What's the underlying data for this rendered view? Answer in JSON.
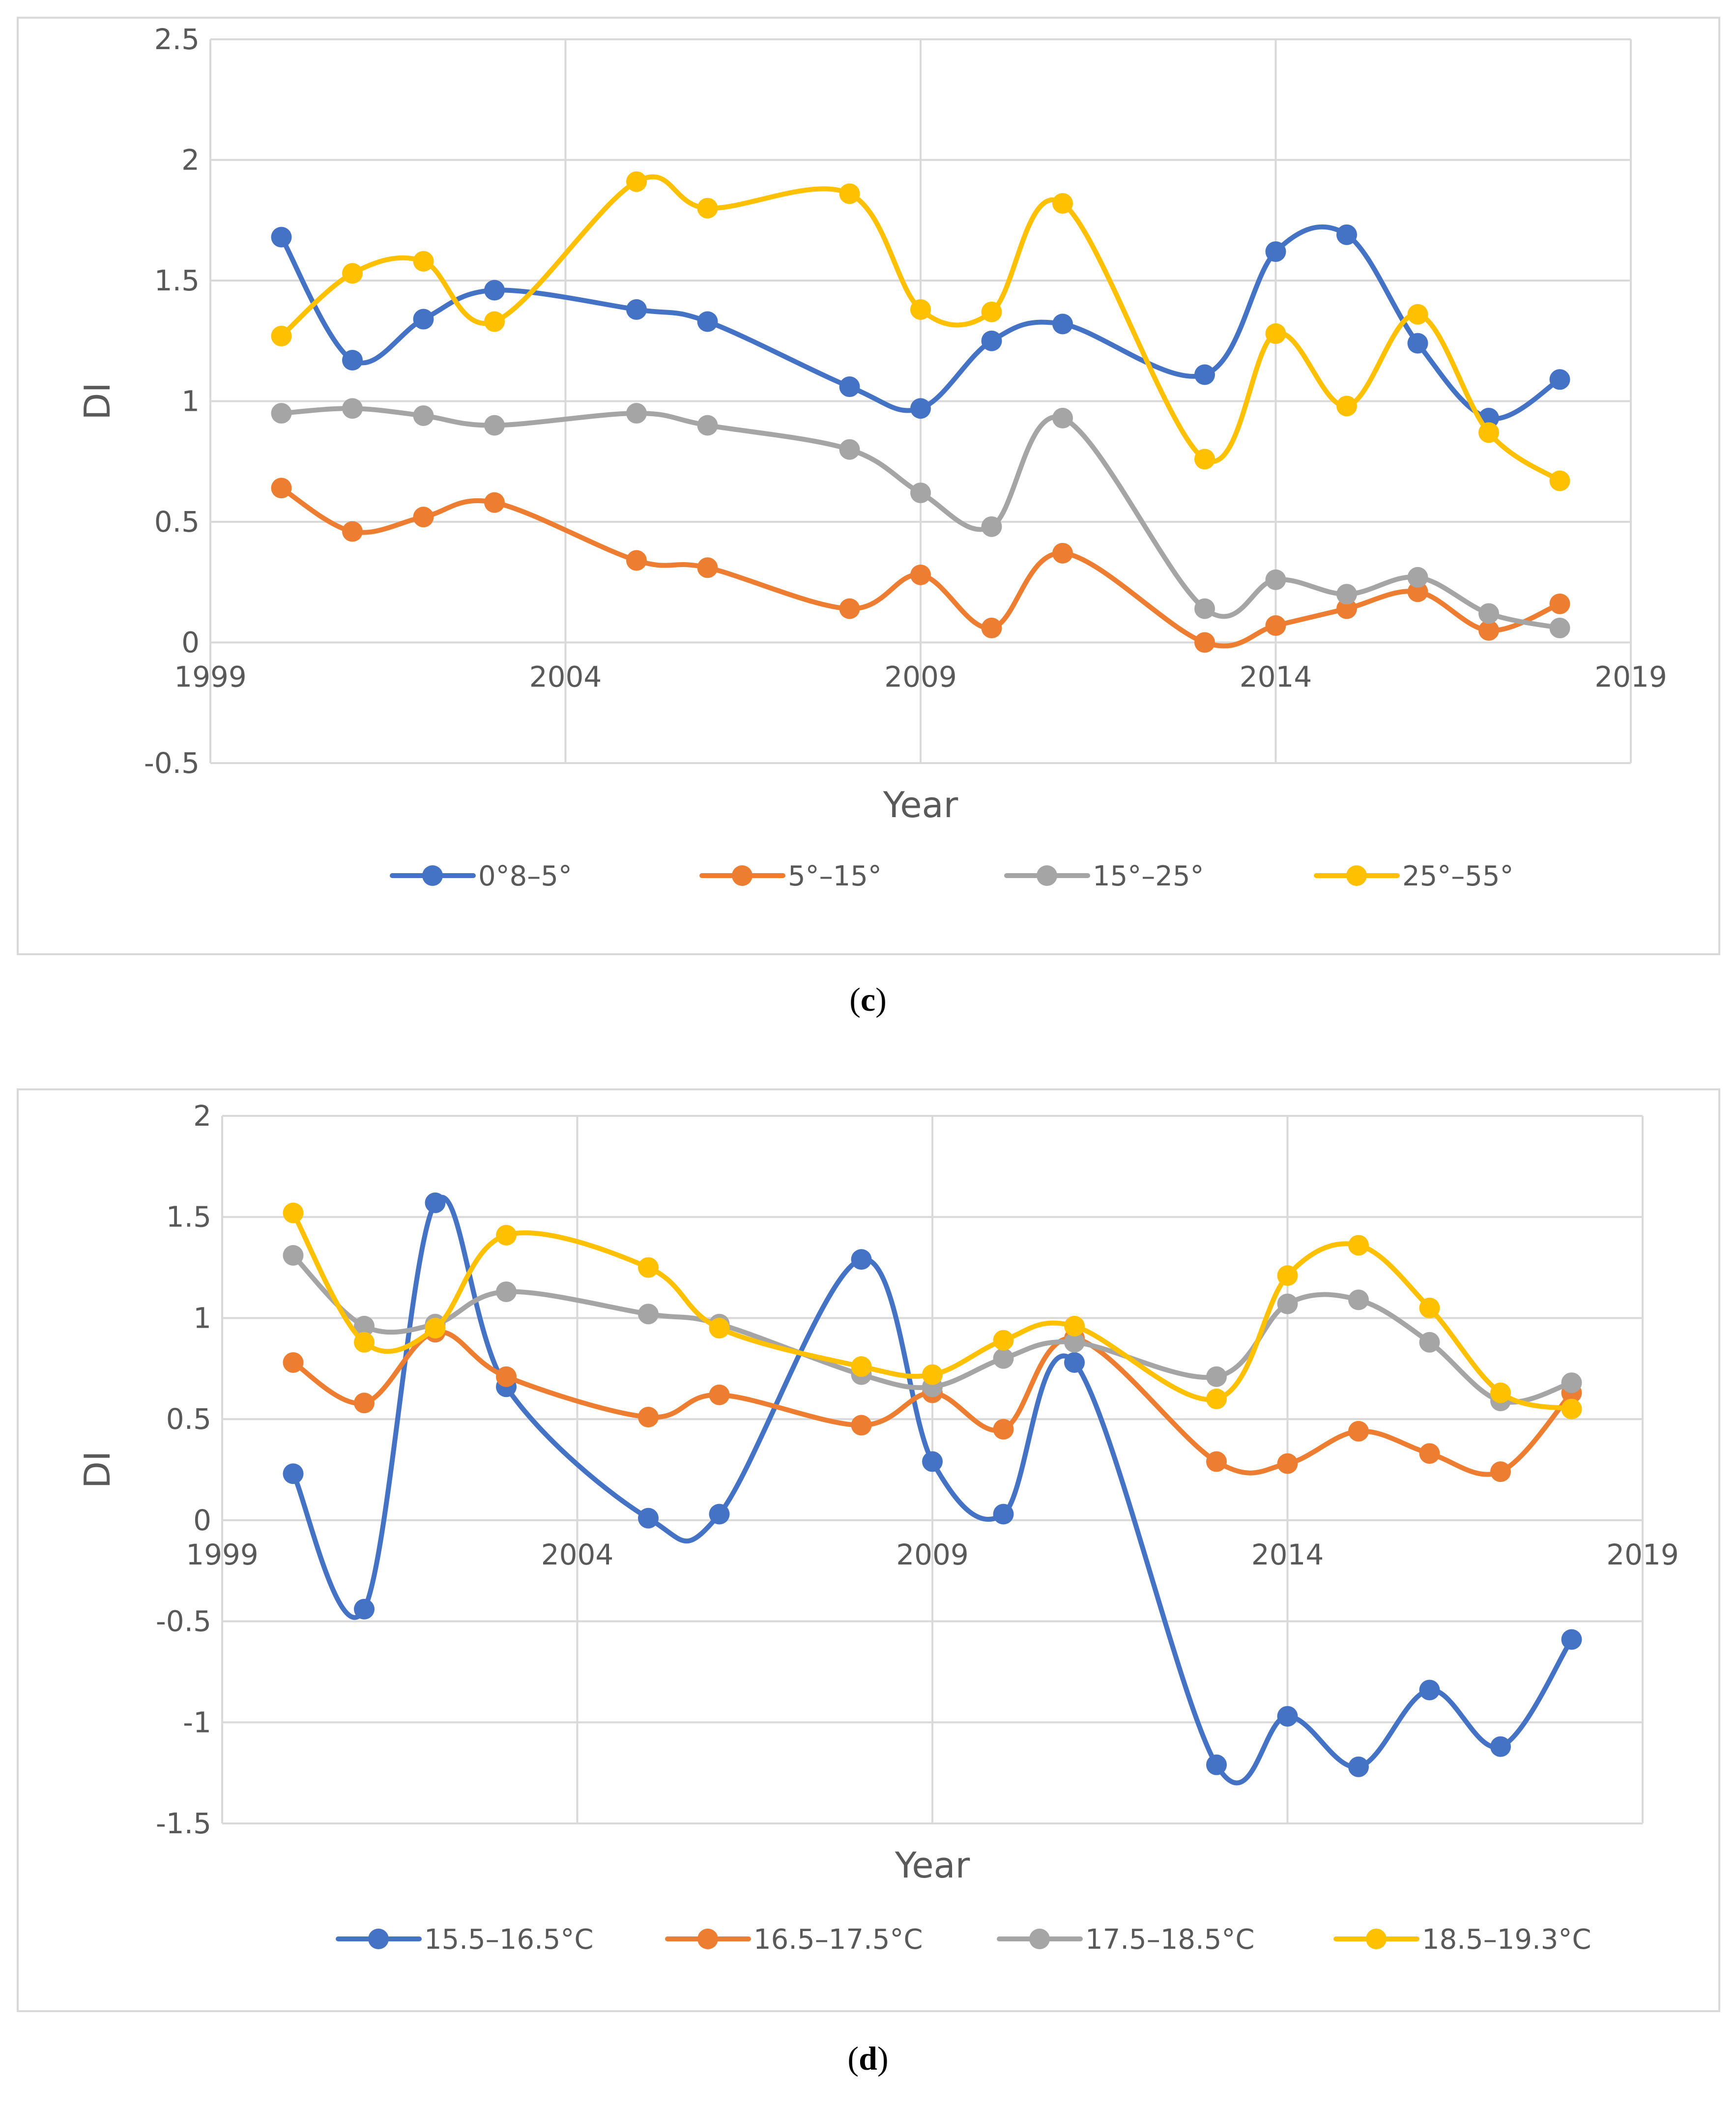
{
  "chart_data": [
    {
      "type": "line",
      "panel": "c",
      "caption": "c",
      "title": "",
      "xlabel": "Year",
      "ylabel": "DI",
      "xlim": [
        1999,
        2019
      ],
      "ylim": [
        -0.5,
        2.5
      ],
      "xticks": [
        "1999",
        "2004",
        "2009",
        "2014",
        "2019"
      ],
      "yticks": [
        "2.5",
        "2",
        "1.5",
        "1",
        "0.5",
        "0",
        "-0.5"
      ],
      "grid": true,
      "legend_position": "bottom",
      "x": [
        2000,
        2001,
        2002,
        2003,
        2005,
        2006,
        2008,
        2009,
        2010,
        2011,
        2013,
        2014,
        2015,
        2016,
        2017,
        2018
      ],
      "series": [
        {
          "name": "0°8–5°",
          "color": "#4472C4",
          "values": [
            1.68,
            1.17,
            1.34,
            1.46,
            1.38,
            1.33,
            1.06,
            0.97,
            1.25,
            1.32,
            1.11,
            1.62,
            1.69,
            1.24,
            0.93,
            1.09
          ]
        },
        {
          "name": "5°–15°",
          "color": "#ED7D31",
          "values": [
            0.64,
            0.46,
            0.52,
            0.58,
            0.34,
            0.31,
            0.14,
            0.28,
            0.06,
            0.37,
            0.0,
            0.07,
            0.14,
            0.21,
            0.05,
            0.16
          ]
        },
        {
          "name": "15°–25°",
          "color": "#A5A5A5",
          "values": [
            0.95,
            0.97,
            0.94,
            0.9,
            0.95,
            0.9,
            0.8,
            0.62,
            0.48,
            0.93,
            0.14,
            0.26,
            0.2,
            0.27,
            0.12,
            0.06
          ]
        },
        {
          "name": "25°–55°",
          "color": "#FFC000",
          "values": [
            1.27,
            1.53,
            1.58,
            1.33,
            1.91,
            1.8,
            1.86,
            1.38,
            1.37,
            1.82,
            0.76,
            1.28,
            0.98,
            1.36,
            0.87,
            0.67
          ]
        }
      ]
    },
    {
      "type": "line",
      "panel": "d",
      "caption": "d",
      "title": "",
      "xlabel": "Year",
      "ylabel": "DI",
      "xlim": [
        1999,
        2019
      ],
      "ylim": [
        -1.5,
        2
      ],
      "xticks": [
        "1999",
        "2004",
        "2009",
        "2014",
        "2019"
      ],
      "yticks": [
        "2",
        "1.5",
        "1",
        "0.5",
        "0",
        "-0.5",
        "-1",
        "-1.5"
      ],
      "grid": true,
      "legend_position": "bottom",
      "x": [
        2000,
        2001,
        2002,
        2003,
        2005,
        2006,
        2008,
        2009,
        2010,
        2011,
        2013,
        2014,
        2015,
        2016,
        2017,
        2018
      ],
      "series": [
        {
          "name": "15.5–16.5°C",
          "color": "#4472C4",
          "values": [
            0.23,
            -0.44,
            1.57,
            0.66,
            0.01,
            0.03,
            1.29,
            0.29,
            0.03,
            0.78,
            -1.21,
            -0.97,
            -1.22,
            -0.84,
            -1.12,
            -0.59
          ]
        },
        {
          "name": "16.5–17.5°C",
          "color": "#ED7D31",
          "values": [
            0.78,
            0.58,
            0.93,
            0.71,
            0.51,
            0.62,
            0.47,
            0.63,
            0.45,
            0.9,
            0.29,
            0.28,
            0.44,
            0.33,
            0.24,
            0.63
          ]
        },
        {
          "name": "17.5–18.5°C",
          "color": "#A5A5A5",
          "values": [
            1.31,
            0.96,
            0.97,
            1.13,
            1.02,
            0.97,
            0.72,
            0.66,
            0.8,
            0.88,
            0.71,
            1.07,
            1.09,
            0.88,
            0.59,
            0.68
          ]
        },
        {
          "name": "18.5–19.3°C",
          "color": "#FFC000",
          "values": [
            1.52,
            0.88,
            0.95,
            1.41,
            1.25,
            0.95,
            0.76,
            0.72,
            0.89,
            0.96,
            0.6,
            1.21,
            1.36,
            1.05,
            0.63,
            0.55
          ]
        }
      ]
    }
  ]
}
